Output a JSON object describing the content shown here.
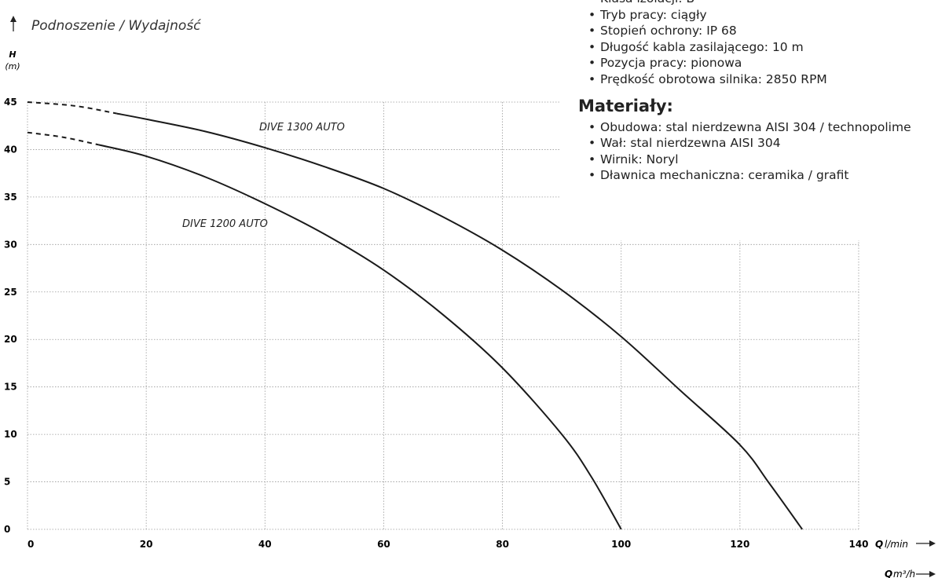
{
  "chart_data": {
    "type": "line",
    "title": "Podnoszenie / Wydajność",
    "y_axis_symbol": "H",
    "y_axis_unit": "(m)",
    "x_axis_symbol": "Q",
    "x_axis_unit": "l/min",
    "x2_axis_symbol": "Q",
    "x2_axis_unit": "m³/h",
    "xlim": [
      0,
      140
    ],
    "ylim": [
      0,
      45
    ],
    "xticks": [
      0,
      20,
      40,
      60,
      80,
      100,
      120,
      140
    ],
    "yticks": [
      0,
      5,
      10,
      15,
      20,
      25,
      30,
      35,
      40,
      45
    ],
    "grid": true,
    "series": [
      {
        "name": "DIVE 1300 AUTO",
        "color": "#1a1a1a",
        "dash_until_x": 15,
        "x": [
          0,
          8,
          15,
          20,
          30,
          40,
          50,
          60,
          70,
          80,
          90,
          100,
          110,
          120,
          125,
          130.5
        ],
        "values": [
          45,
          44.6,
          43.8,
          43.2,
          41.9,
          40.2,
          38.2,
          35.9,
          32.9,
          29.4,
          25.2,
          20.3,
          14.6,
          8.9,
          4.8,
          0
        ]
      },
      {
        "name": "DIVE 1200 AUTO",
        "color": "#1a1a1a",
        "dash_until_x": 12,
        "x": [
          0,
          6,
          12,
          20,
          30,
          40,
          50,
          60,
          70,
          80,
          90,
          95,
          100
        ],
        "values": [
          41.8,
          41.3,
          40.5,
          39.3,
          37.1,
          34.3,
          31.1,
          27.3,
          22.6,
          17,
          10,
          5.5,
          0
        ]
      }
    ]
  },
  "info": {
    "specs": [
      "Klasa izolacji: B",
      "Tryb pracy: ciągły",
      "Stopień ochrony: IP 68",
      "Długość kabla zasilającego: 10 m",
      "Pozycja pracy: pionowa",
      "Prędkość obrotowa silnika: 2850 RPM"
    ],
    "materials_heading": "Materiały:",
    "materials": [
      "Obudowa: stal nierdzewna AISI 304 / technopolime",
      "Wał: stal nierdzewna AISI 304",
      "Wirnik: Noryl",
      "Dławnica mechaniczna: ceramika / grafit"
    ]
  }
}
